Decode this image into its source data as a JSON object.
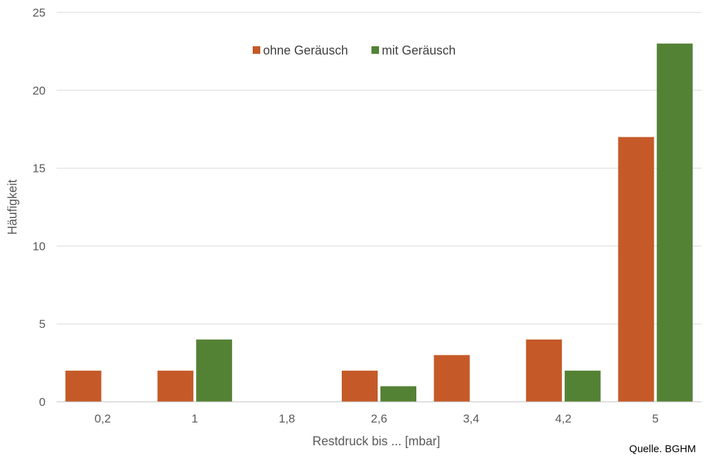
{
  "chart_data": {
    "type": "bar",
    "categories": [
      "0,2",
      "1",
      "1,8",
      "2,6",
      "3,4",
      "4,2",
      "5"
    ],
    "series": [
      {
        "name": "ohne Geräusch",
        "values": [
          2,
          2,
          0,
          2,
          3,
          4,
          17
        ],
        "color": "#c55a28"
      },
      {
        "name": "mit Geräusch",
        "values": [
          0,
          4,
          0,
          1,
          0,
          2,
          23
        ],
        "color": "#548235"
      }
    ],
    "title": "",
    "xlabel": "Restdruck bis ... [mbar]",
    "ylabel": "Häufigkeit",
    "ylim": [
      0,
      25
    ],
    "yticks": [
      "0",
      "5",
      "10",
      "15",
      "20",
      "25"
    ],
    "grid": true,
    "legend_position": "top-center"
  },
  "source_note": "Quelle. BGHM"
}
